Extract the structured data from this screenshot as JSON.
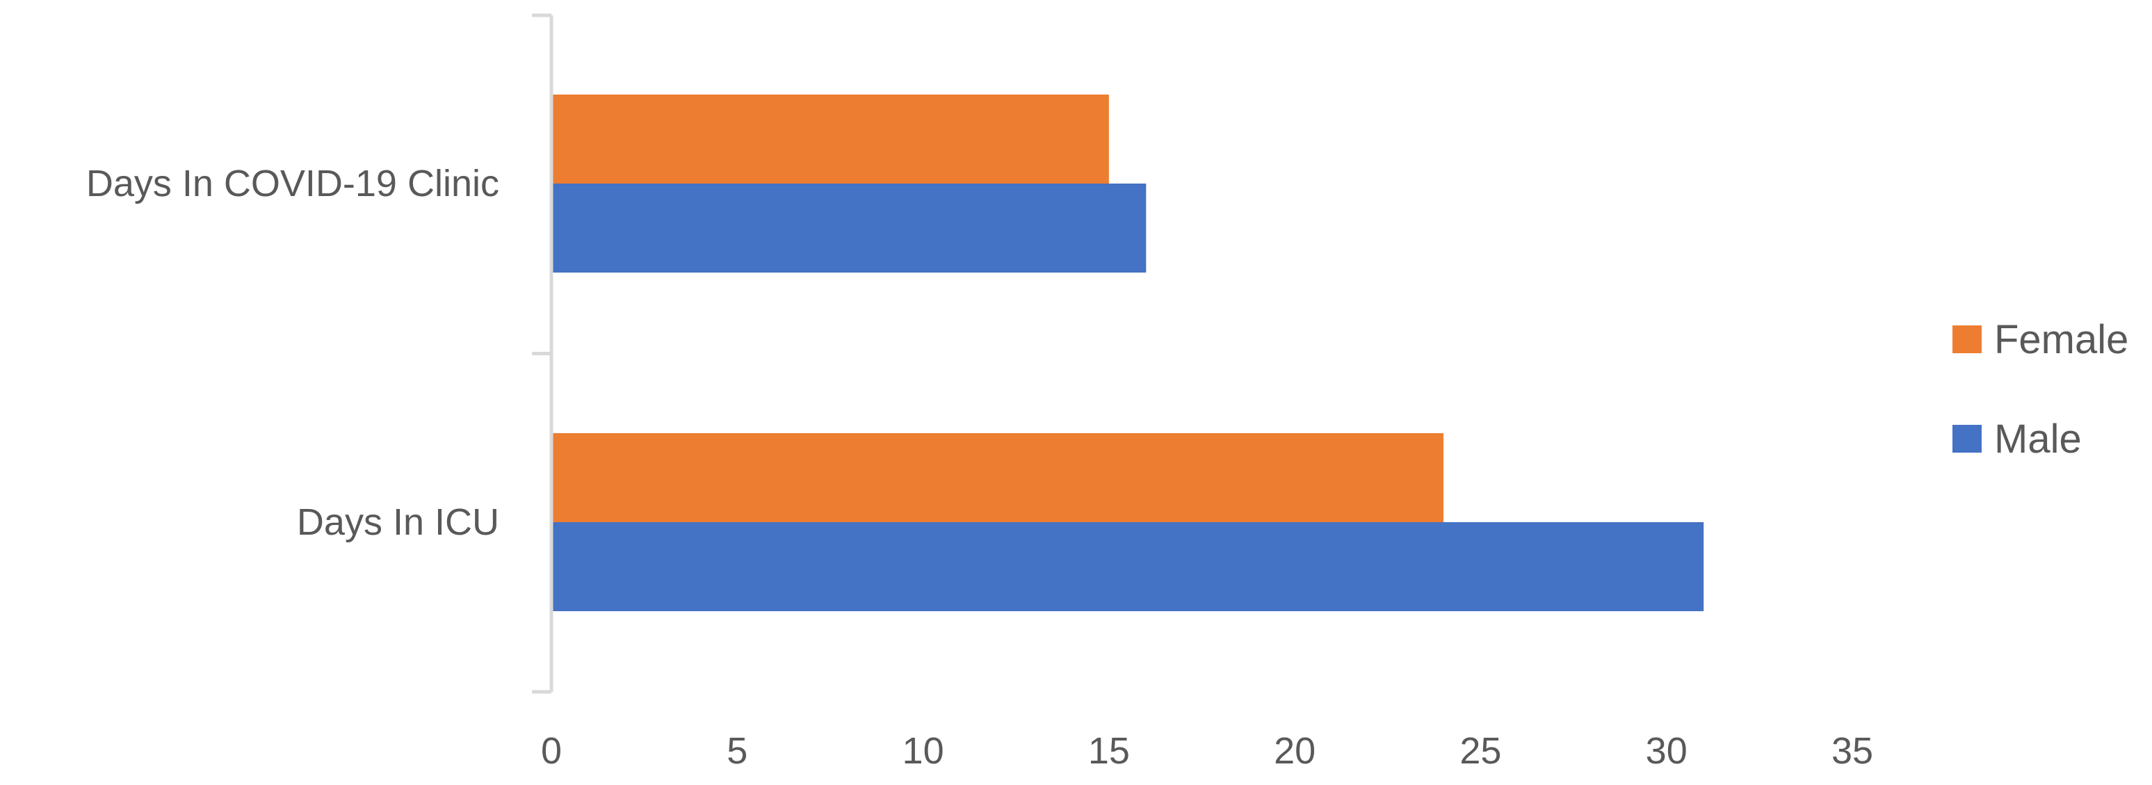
{
  "chart_data": {
    "type": "bar",
    "orientation": "horizontal",
    "title": "",
    "xlabel": "",
    "ylabel": "",
    "categories": [
      "Days In COVID-19 Clinic",
      "Days In ICU"
    ],
    "series": [
      {
        "name": "Female",
        "values": [
          15,
          24
        ],
        "color": "#ED7D31"
      },
      {
        "name": "Male",
        "values": [
          16,
          31
        ],
        "color": "#4472C4"
      }
    ],
    "xlim": [
      0,
      35
    ],
    "xticks": [
      0,
      5,
      10,
      15,
      20,
      25,
      30,
      35
    ],
    "grid": false,
    "legend": {
      "position": "right",
      "order": [
        "Female",
        "Male"
      ]
    },
    "axis_color": "#D9D9D9"
  }
}
